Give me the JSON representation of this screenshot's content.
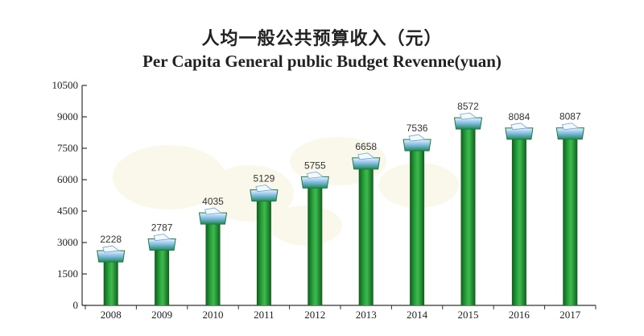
{
  "title_cn": "人均一般公共预算收入（元）",
  "title_en": "Per Capita General public Budget Revenne(yuan)",
  "chart_data": {
    "type": "bar",
    "title": "Per Capita General public Budget Revenne(yuan)",
    "xlabel": "",
    "ylabel": "",
    "ylim": [
      0,
      10500
    ],
    "yticks": [
      0,
      1500,
      3000,
      4500,
      6000,
      7500,
      9000,
      10500
    ],
    "categories": [
      "2008",
      "2009",
      "2010",
      "2011",
      "2012",
      "2013",
      "2014",
      "2015",
      "2016",
      "2017"
    ],
    "values": [
      2228,
      2787,
      4035,
      5129,
      5755,
      6658,
      7536,
      8572,
      8084,
      8087
    ],
    "bar_color": "#1e8a2e",
    "cap_color": "#2f9a5a"
  }
}
